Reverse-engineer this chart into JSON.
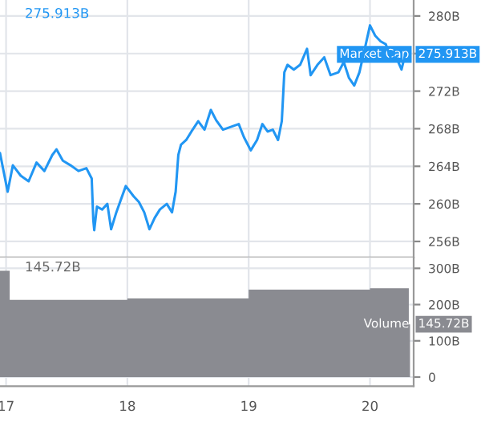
{
  "chart_data": [
    {
      "type": "line",
      "tick_labels": "y",
      "grid": true,
      "x": [
        16.95,
        17.013,
        17.056,
        17.121,
        17.186,
        17.251,
        17.316,
        17.381,
        17.416,
        17.468,
        17.532,
        17.597,
        17.662,
        17.706,
        17.719,
        17.727,
        17.749,
        17.792,
        17.835,
        17.866,
        17.909,
        17.987,
        18.052,
        18.095,
        18.139,
        18.182,
        18.225,
        18.268,
        18.325,
        18.368,
        18.398,
        18.42,
        18.442,
        18.485,
        18.528,
        18.584,
        18.636,
        18.688,
        18.732,
        18.788,
        18.853,
        18.918,
        18.961,
        19.017,
        19.069,
        19.113,
        19.156,
        19.199,
        19.242,
        19.273,
        19.294,
        19.32,
        19.372,
        19.424,
        19.481,
        19.511,
        19.567,
        19.623,
        19.675,
        19.74,
        19.784,
        19.827,
        19.87,
        19.913,
        19.957,
        20.0,
        20.043,
        20.087,
        20.13,
        20.173,
        20.216,
        20.26,
        20.29
      ],
      "series": [
        {
          "name": "Market Cap",
          "color": "#2196f3",
          "values": [
            265.4,
            261.3,
            264.1,
            263.0,
            262.4,
            264.4,
            263.5,
            265.2,
            265.8,
            264.6,
            264.1,
            263.5,
            263.8,
            262.7,
            258.3,
            257.2,
            259.7,
            259.4,
            260.0,
            257.3,
            259.1,
            261.9,
            260.8,
            260.2,
            259.1,
            257.3,
            258.5,
            259.4,
            260.0,
            259.1,
            261.3,
            265.2,
            266.3,
            266.8,
            267.7,
            268.8,
            267.9,
            270.0,
            268.9,
            267.9,
            268.2,
            268.5,
            267.1,
            265.7,
            266.8,
            268.5,
            267.7,
            267.9,
            266.8,
            268.8,
            274.0,
            274.8,
            274.3,
            274.8,
            276.5,
            273.7,
            274.8,
            275.6,
            273.7,
            274.0,
            275.1,
            273.4,
            272.6,
            274.0,
            276.5,
            279.0,
            277.9,
            277.3,
            277.0,
            275.4,
            275.6,
            274.3,
            275.913
          ]
        }
      ],
      "xlim": [
        16.95,
        20.36
      ],
      "xticks": [
        17,
        18,
        19,
        20
      ],
      "ylim": [
        254.3,
        281.7
      ],
      "yticks": [
        {
          "value": 256,
          "label": "256B"
        },
        {
          "value": 260,
          "label": "260B"
        },
        {
          "value": 264,
          "label": "264B"
        },
        {
          "value": 268,
          "label": "268B"
        },
        {
          "value": 272,
          "label": "272B"
        },
        {
          "value": 276,
          "label": null
        },
        {
          "value": 280,
          "label": "280B"
        }
      ],
      "annotations": [
        "275.913B",
        "275.913B"
      ]
    },
    {
      "type": "area",
      "grid": true,
      "x": [
        16.95,
        17.03,
        17.03,
        18,
        18,
        19,
        19,
        20,
        20,
        20.32,
        20.32,
        20.33
      ],
      "series": [
        {
          "name": "Volume",
          "color": "#8a8b91",
          "values": [
            293,
            293,
            213,
            213,
            217,
            217,
            241,
            241,
            245,
            245,
            145.72,
            145.72
          ]
        }
      ],
      "xlim": [
        16.95,
        20.36
      ],
      "xticks": [
        17,
        18,
        19,
        20
      ],
      "ylim": [
        -25,
        330
      ],
      "yticks": [
        0,
        {
          "value": 100,
          "label": "100B"
        },
        {
          "value": 200,
          "label": "200B"
        },
        {
          "value": 300,
          "label": "300B"
        }
      ],
      "annotations": [
        "145.72B",
        "145.72B"
      ]
    }
  ]
}
